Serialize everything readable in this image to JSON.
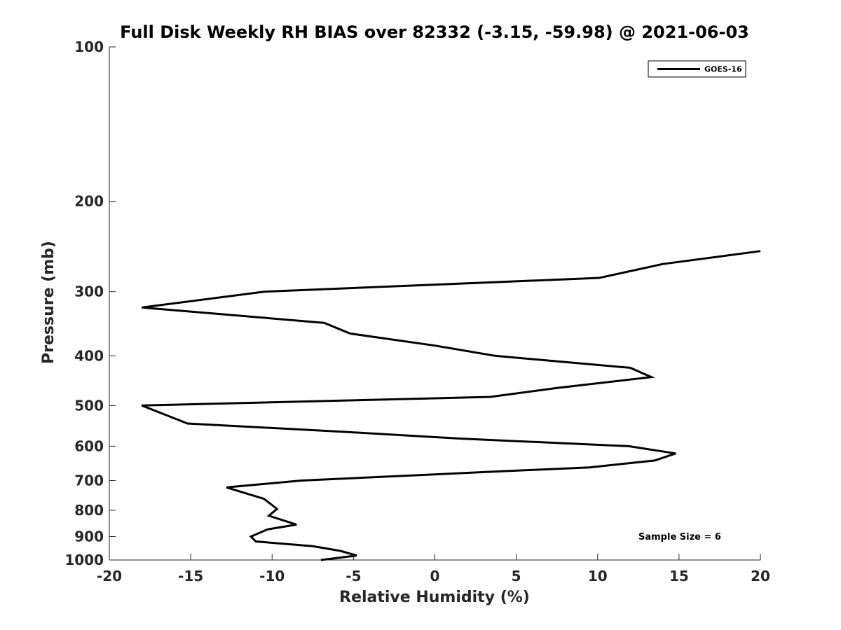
{
  "chart_data": {
    "type": "line",
    "title": "Full Disk Weekly RH BIAS over 82332 (-3.15, -59.98) @ 2021-06-03",
    "xlabel": "Relative Humidity (%)",
    "ylabel": "Pressure (mb)",
    "xlim": [
      -20,
      20
    ],
    "ylim": [
      1000,
      100
    ],
    "y_scale": "log",
    "y_reversed": true,
    "x_ticks": [
      "-20",
      "-15",
      "-10",
      "-5",
      "0",
      "5",
      "10",
      "15",
      "20"
    ],
    "y_ticks": [
      "100",
      "200",
      "300",
      "400",
      "500",
      "600",
      "700",
      "800",
      "900",
      "1000"
    ],
    "grid": false,
    "legend_position": "top-right",
    "annotation": "Sample Size = 6",
    "series": [
      {
        "name": "GOES-16",
        "color": "#000000",
        "points": [
          {
            "x": 20.0,
            "y": 250
          },
          {
            "x": 14.0,
            "y": 265
          },
          {
            "x": 10.1,
            "y": 282
          },
          {
            "x": -10.5,
            "y": 300
          },
          {
            "x": -18.0,
            "y": 322
          },
          {
            "x": -6.8,
            "y": 345
          },
          {
            "x": -5.2,
            "y": 362
          },
          {
            "x": 0.0,
            "y": 382
          },
          {
            "x": 3.7,
            "y": 400
          },
          {
            "x": 12.0,
            "y": 422
          },
          {
            "x": 13.3,
            "y": 440
          },
          {
            "x": 7.5,
            "y": 462
          },
          {
            "x": 3.4,
            "y": 481
          },
          {
            "x": -18.0,
            "y": 500
          },
          {
            "x": -15.2,
            "y": 542
          },
          {
            "x": -5.8,
            "y": 562
          },
          {
            "x": 1.6,
            "y": 580
          },
          {
            "x": 11.9,
            "y": 600
          },
          {
            "x": 14.8,
            "y": 620
          },
          {
            "x": 13.5,
            "y": 640
          },
          {
            "x": 9.5,
            "y": 660
          },
          {
            "x": 3.5,
            "y": 673
          },
          {
            "x": -8.2,
            "y": 700
          },
          {
            "x": -12.8,
            "y": 722
          },
          {
            "x": -10.5,
            "y": 760
          },
          {
            "x": -9.7,
            "y": 795
          },
          {
            "x": -10.2,
            "y": 820
          },
          {
            "x": -8.5,
            "y": 853
          },
          {
            "x": -10.3,
            "y": 872
          },
          {
            "x": -11.3,
            "y": 900
          },
          {
            "x": -11.0,
            "y": 920
          },
          {
            "x": -7.5,
            "y": 940
          },
          {
            "x": -5.8,
            "y": 960
          },
          {
            "x": -4.8,
            "y": 980
          },
          {
            "x": -7.0,
            "y": 1000
          }
        ]
      }
    ]
  }
}
